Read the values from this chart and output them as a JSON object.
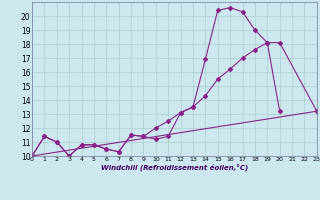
{
  "xlabel": "Windchill (Refroidissement éolien,°C)",
  "bg_color": "#cce8ee",
  "grid_color": "#aacccc",
  "line_color": "#882288",
  "xmin": 0,
  "xmax": 23,
  "ymin": 10,
  "ymax": 21,
  "yticks": [
    10,
    11,
    12,
    13,
    14,
    15,
    16,
    17,
    18,
    19,
    20
  ],
  "xticks": [
    0,
    1,
    2,
    3,
    4,
    5,
    6,
    7,
    8,
    9,
    10,
    11,
    12,
    13,
    14,
    15,
    16,
    17,
    18,
    19,
    20,
    21,
    22,
    23
  ],
  "series1_x": [
    0,
    1,
    2,
    3,
    4,
    5,
    6,
    7,
    8,
    9,
    10,
    11,
    12,
    13,
    14,
    15,
    16,
    17,
    18,
    19,
    20
  ],
  "series1_y": [
    10,
    11.4,
    11.0,
    10.0,
    10.8,
    10.8,
    10.5,
    10.3,
    11.5,
    11.4,
    11.2,
    11.4,
    13.1,
    13.5,
    16.9,
    20.4,
    20.6,
    20.3,
    19.0,
    18.1,
    13.2
  ],
  "series2_x": [
    0,
    23
  ],
  "series2_y": [
    10,
    13.2
  ],
  "series3_x": [
    0,
    1,
    2,
    3,
    4,
    5,
    6,
    7,
    8,
    9,
    10,
    11,
    12,
    13,
    14,
    15,
    16,
    17,
    18,
    19,
    20,
    23
  ],
  "series3_y": [
    10,
    11.4,
    11.0,
    10.0,
    10.8,
    10.8,
    10.5,
    10.3,
    11.5,
    11.4,
    12.0,
    12.5,
    13.1,
    13.5,
    14.3,
    15.5,
    16.2,
    17.0,
    17.6,
    18.1,
    18.1,
    13.2
  ]
}
